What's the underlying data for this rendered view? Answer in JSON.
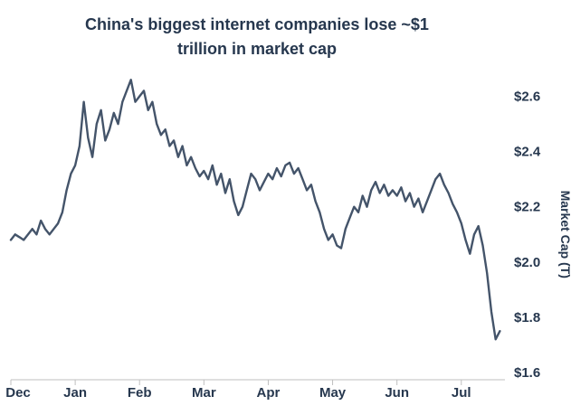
{
  "title_lines": [
    "China's biggest internet companies lose ~$1",
    "trillion in market cap"
  ],
  "colors": {
    "line": "#44546A",
    "text": "#26374E",
    "axis": "#BFBFBF",
    "background": "#FFFFFF"
  },
  "chart_data": {
    "type": "line",
    "title": "China's biggest internet companies lose ~$1 trillion in market cap",
    "xlabel": "",
    "ylabel": "Market Cap (T)",
    "x_tick_labels": [
      "Dec",
      "Jan",
      "Feb",
      "Mar",
      "Apr",
      "May",
      "Jun",
      "Jul"
    ],
    "y_tick_labels": [
      "$1.6",
      "$1.8",
      "$2.0",
      "$2.2",
      "$2.4",
      "$2.6"
    ],
    "y_tick_values": [
      1.6,
      1.8,
      2.0,
      2.2,
      2.4,
      2.6
    ],
    "ylim": [
      1.6,
      2.7
    ],
    "xlim_months": [
      0,
      7.65
    ],
    "points_per_month": 15,
    "grid": false,
    "legend": "none",
    "series": [
      {
        "name": "Market Cap (T)",
        "unit": "trillion USD",
        "color": "#44546A",
        "values": [
          2.08,
          2.1,
          2.09,
          2.08,
          2.1,
          2.12,
          2.1,
          2.15,
          2.12,
          2.1,
          2.12,
          2.14,
          2.18,
          2.26,
          2.32,
          2.35,
          2.42,
          2.58,
          2.45,
          2.38,
          2.5,
          2.55,
          2.44,
          2.48,
          2.54,
          2.5,
          2.58,
          2.62,
          2.66,
          2.58,
          2.6,
          2.62,
          2.55,
          2.58,
          2.5,
          2.46,
          2.48,
          2.42,
          2.44,
          2.38,
          2.42,
          2.35,
          2.38,
          2.34,
          2.31,
          2.33,
          2.3,
          2.35,
          2.28,
          2.32,
          2.25,
          2.3,
          2.22,
          2.17,
          2.2,
          2.26,
          2.32,
          2.3,
          2.26,
          2.29,
          2.32,
          2.3,
          2.34,
          2.31,
          2.35,
          2.36,
          2.32,
          2.34,
          2.3,
          2.26,
          2.28,
          2.22,
          2.18,
          2.12,
          2.08,
          2.1,
          2.06,
          2.05,
          2.12,
          2.16,
          2.2,
          2.18,
          2.24,
          2.2,
          2.26,
          2.29,
          2.25,
          2.28,
          2.24,
          2.26,
          2.24,
          2.27,
          2.22,
          2.25,
          2.2,
          2.23,
          2.18,
          2.22,
          2.26,
          2.3,
          2.32,
          2.28,
          2.25,
          2.21,
          2.18,
          2.14,
          2.08,
          2.03,
          2.1,
          2.13,
          2.06,
          1.96,
          1.82,
          1.72,
          1.75
        ]
      }
    ]
  }
}
